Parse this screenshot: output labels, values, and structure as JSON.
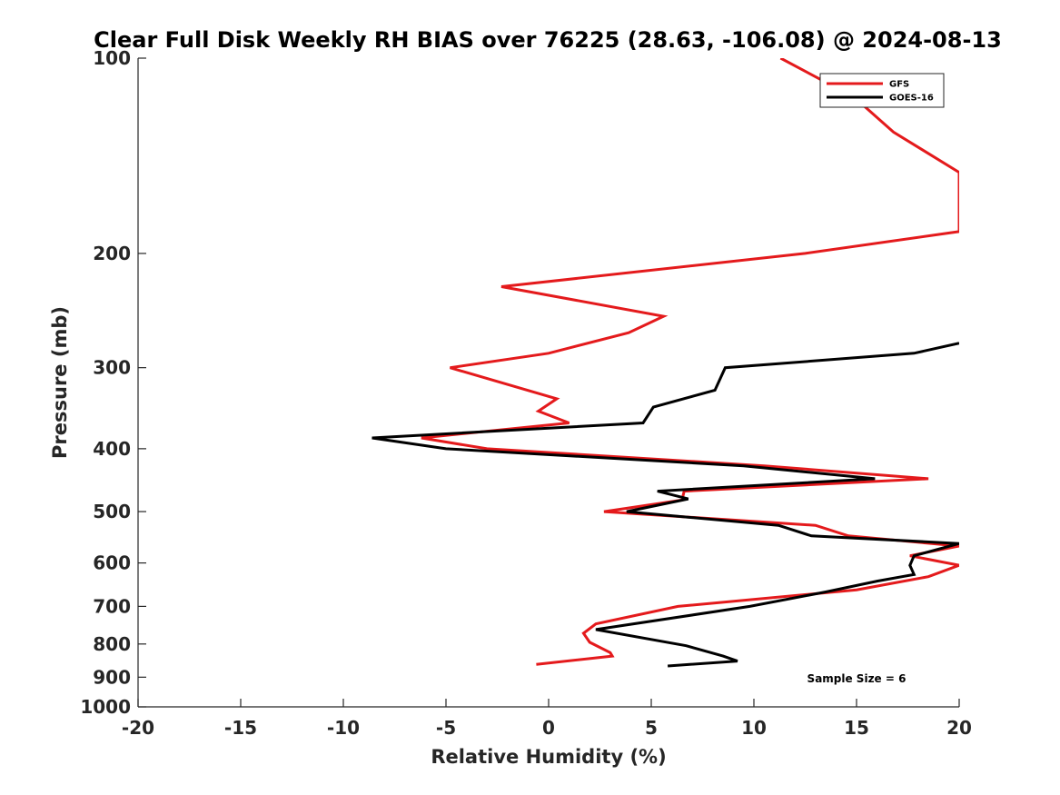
{
  "chart_data": {
    "type": "line",
    "title": "Clear Full Disk Weekly RH BIAS over 76225 (28.63, -106.08) @ 2024-08-13",
    "xlabel": "Relative Humidity (%)",
    "ylabel": "Pressure (mb)",
    "xlim": [
      -20,
      20
    ],
    "ylim": [
      100,
      1000
    ],
    "yscale": "log",
    "y_reversed": true,
    "xticks": [
      -20,
      -15,
      -10,
      -5,
      0,
      5,
      10,
      15,
      20
    ],
    "yticks": [
      100,
      200,
      300,
      400,
      500,
      600,
      700,
      800,
      900,
      1000
    ],
    "grid": false,
    "legend_position": "top-right",
    "annotation": "Sample Size = 6",
    "series": [
      {
        "name": "GFS",
        "color": "#e41a1c",
        "points": [
          [
            11.3,
            100
          ],
          [
            14.9,
            115
          ],
          [
            16.8,
            130
          ],
          [
            20.0,
            150
          ],
          [
            20.0,
            185
          ],
          [
            12.5,
            200
          ],
          [
            -2.3,
            225
          ],
          [
            5.6,
            250
          ],
          [
            3.9,
            265
          ],
          [
            0.0,
            285
          ],
          [
            -4.8,
            300
          ],
          [
            0.4,
            335
          ],
          [
            -0.5,
            350
          ],
          [
            1.0,
            365
          ],
          [
            -6.2,
            385
          ],
          [
            -3.0,
            400
          ],
          [
            10.5,
            425
          ],
          [
            18.5,
            445
          ],
          [
            6.6,
            465
          ],
          [
            6.5,
            480
          ],
          [
            2.7,
            500
          ],
          [
            13.0,
            525
          ],
          [
            14.6,
            545
          ],
          [
            20.0,
            565
          ],
          [
            17.6,
            585
          ],
          [
            20.0,
            605
          ],
          [
            18.5,
            630
          ],
          [
            15.0,
            660
          ],
          [
            6.3,
            700
          ],
          [
            2.3,
            745
          ],
          [
            1.7,
            770
          ],
          [
            2.0,
            795
          ],
          [
            3.0,
            825
          ],
          [
            3.1,
            835
          ],
          [
            -0.6,
            860
          ]
        ]
      },
      {
        "name": "GOES-16",
        "color": "#000000",
        "points": [
          [
            20.0,
            275
          ],
          [
            17.8,
            285
          ],
          [
            8.6,
            300
          ],
          [
            8.1,
            325
          ],
          [
            5.1,
            345
          ],
          [
            4.6,
            365
          ],
          [
            -8.6,
            385
          ],
          [
            -5.0,
            400
          ],
          [
            9.5,
            425
          ],
          [
            15.9,
            445
          ],
          [
            5.3,
            465
          ],
          [
            6.8,
            478
          ],
          [
            3.8,
            500
          ],
          [
            11.2,
            525
          ],
          [
            12.8,
            545
          ],
          [
            20.0,
            560
          ],
          [
            17.8,
            585
          ],
          [
            17.6,
            605
          ],
          [
            17.8,
            625
          ],
          [
            16.0,
            640
          ],
          [
            13.5,
            665
          ],
          [
            9.8,
            700
          ],
          [
            2.3,
            760
          ],
          [
            6.7,
            805
          ],
          [
            8.5,
            835
          ],
          [
            9.2,
            850
          ],
          [
            5.8,
            865
          ]
        ]
      }
    ]
  }
}
